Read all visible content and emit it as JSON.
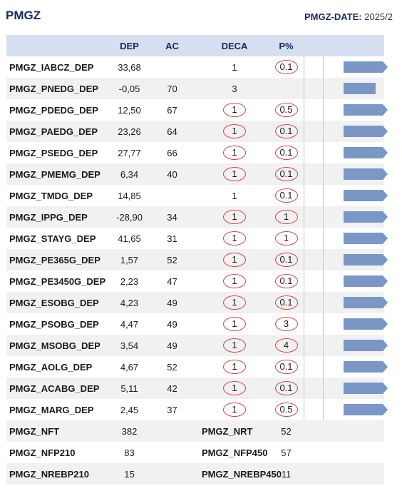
{
  "header": {
    "title": "PMGZ",
    "date_label": "PMGZ-DATE:",
    "date_value": "2025/2"
  },
  "columns": {
    "name": "",
    "dep": "DEP",
    "ac": "AC",
    "deca": "DECA",
    "p": "P%"
  },
  "rows": [
    {
      "name": "PMGZ_IABCZ_DEP",
      "dep": "33,68",
      "ac": "",
      "deca": "1",
      "deca_circled": false,
      "p": "0.1",
      "p_circled": true,
      "bar_fraction": 1.0,
      "bar_arrow": true
    },
    {
      "name": "PMGZ_PNEDG_DEP",
      "dep": "-0,05",
      "ac": "70",
      "deca": "3",
      "deca_circled": false,
      "p": "",
      "p_circled": false,
      "bar_fraction": 0.72,
      "bar_arrow": false
    },
    {
      "name": "PMGZ_PDEDG_DEP",
      "dep": "12,50",
      "ac": "67",
      "deca": "1",
      "deca_circled": true,
      "p": "0.5",
      "p_circled": true,
      "bar_fraction": 1.0,
      "bar_arrow": true
    },
    {
      "name": "PMGZ_PAEDG_DEP",
      "dep": "23,26",
      "ac": "64",
      "deca": "1",
      "deca_circled": true,
      "p": "0.1",
      "p_circled": true,
      "bar_fraction": 1.0,
      "bar_arrow": true
    },
    {
      "name": "PMGZ_PSEDG_DEP",
      "dep": "27,77",
      "ac": "66",
      "deca": "1",
      "deca_circled": true,
      "p": "0.1",
      "p_circled": true,
      "bar_fraction": 1.0,
      "bar_arrow": true
    },
    {
      "name": "PMGZ_PMEMG_DEP",
      "dep": "6,34",
      "ac": "40",
      "deca": "1",
      "deca_circled": true,
      "p": "0.1",
      "p_circled": true,
      "bar_fraction": 1.0,
      "bar_arrow": true
    },
    {
      "name": "PMGZ_TMDG_DEP",
      "dep": "14,85",
      "ac": "",
      "deca": "1",
      "deca_circled": false,
      "p": "0.1",
      "p_circled": true,
      "bar_fraction": 1.0,
      "bar_arrow": true
    },
    {
      "name": "PMGZ_IPPG_DEP",
      "dep": "-28,90",
      "ac": "34",
      "deca": "1",
      "deca_circled": true,
      "p": "1",
      "p_circled": true,
      "bar_fraction": 1.0,
      "bar_arrow": true
    },
    {
      "name": "PMGZ_STAYG_DEP",
      "dep": "41,65",
      "ac": "31",
      "deca": "1",
      "deca_circled": true,
      "p": "1",
      "p_circled": true,
      "bar_fraction": 1.0,
      "bar_arrow": true
    },
    {
      "name": "PMGZ_PE365G_DEP",
      "dep": "1,57",
      "ac": "52",
      "deca": "1",
      "deca_circled": true,
      "p": "0.1",
      "p_circled": true,
      "bar_fraction": 1.0,
      "bar_arrow": true
    },
    {
      "name": "PMGZ_PE3450G_DEP",
      "dep": "2,23",
      "ac": "47",
      "deca": "1",
      "deca_circled": true,
      "p": "0.1",
      "p_circled": true,
      "bar_fraction": 1.0,
      "bar_arrow": true
    },
    {
      "name": "PMGZ_ESOBG_DEP",
      "dep": "4,23",
      "ac": "49",
      "deca": "1",
      "deca_circled": true,
      "p": "0.1",
      "p_circled": true,
      "bar_fraction": 1.0,
      "bar_arrow": true
    },
    {
      "name": "PMGZ_PSOBG_DEP",
      "dep": "4,47",
      "ac": "49",
      "deca": "1",
      "deca_circled": true,
      "p": "3",
      "p_circled": true,
      "bar_fraction": 1.0,
      "bar_arrow": true
    },
    {
      "name": "PMGZ_MSOBG_DEP",
      "dep": "3,54",
      "ac": "49",
      "deca": "1",
      "deca_circled": true,
      "p": "4",
      "p_circled": true,
      "bar_fraction": 1.0,
      "bar_arrow": true
    },
    {
      "name": "PMGZ_AOLG_DEP",
      "dep": "4,67",
      "ac": "52",
      "deca": "1",
      "deca_circled": true,
      "p": "0.1",
      "p_circled": true,
      "bar_fraction": 1.0,
      "bar_arrow": true
    },
    {
      "name": "PMGZ_ACABG_DEP",
      "dep": "5,11",
      "ac": "42",
      "deca": "1",
      "deca_circled": true,
      "p": "0.1",
      "p_circled": true,
      "bar_fraction": 1.0,
      "bar_arrow": true
    },
    {
      "name": "PMGZ_MARG_DEP",
      "dep": "2,45",
      "ac": "37",
      "deca": "1",
      "deca_circled": true,
      "p": "0.5",
      "p_circled": true,
      "bar_fraction": 1.0,
      "bar_arrow": true
    }
  ],
  "summary": [
    {
      "name1": "PMGZ_NFT",
      "val1": "382",
      "name2": "PMGZ_NRT",
      "val2": "52"
    },
    {
      "name1": "PMGZ_NFP210",
      "val1": "83",
      "name2": "PMGZ_NFP450",
      "val2": "57"
    },
    {
      "name1": "PMGZ_NREBP210",
      "val1": "15",
      "name2": "PMGZ_NREBP450",
      "val2": "11"
    }
  ],
  "colors": {
    "header_bg": "#d6dff0",
    "bar": "#7b97c6",
    "circle": "#d94040",
    "title": "#1b2a5c"
  }
}
